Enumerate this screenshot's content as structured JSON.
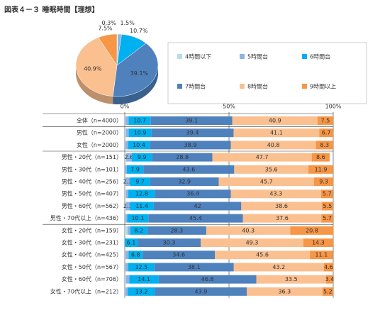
{
  "chart_data": [
    {
      "type": "pie",
      "title": "図表４－３ 睡眠時間【理想】",
      "values": [
        0.3,
        1.5,
        10.7,
        39.1,
        40.9,
        7.5
      ],
      "value_labels": [
        "0.3%",
        "1.5%",
        "10.7%",
        "39.1%",
        "40.9%",
        "7.5%"
      ]
    },
    {
      "type": "stacked-bar",
      "categories": [
        "全体（n=4000）",
        "男性（n=2000）",
        "女性（n=2000）",
        "男性・20代（n=151）",
        "男性・30代（n=101）",
        "男性・40代（n=256）",
        "男性・50代（n=407）",
        "男性・60代（n=562）",
        "男性・70代以上（n=436）",
        "女性・20代（n=159）",
        "女性・30代（n=231）",
        "女性・40代（n=425）",
        "女性・50代（n=567）",
        "女性・60代（n=706）",
        "女性・70代以上（n=212）"
      ],
      "series": [
        {
          "name": "4時間以下",
          "color": "#b7dde8",
          "values": [
            0.3,
            0.5,
            0.2,
            0.7,
            0.0,
            0.2,
            0.5,
            0.4,
            0.2,
            1.3,
            0.0,
            0.2,
            0.2,
            0.5,
            0.2
          ]
        },
        {
          "name": "5時間台",
          "color": "#8db3e2",
          "values": [
            1.5,
            1.4,
            1.4,
            2.6,
            1.0,
            2.3,
            1.2,
            2.1,
            1.0,
            1.3,
            0.0,
            1.6,
            1.5,
            1.7,
            1.2
          ]
        },
        {
          "name": "6時間台",
          "color": "#00b0f0",
          "values": [
            10.7,
            10.9,
            10.4,
            9.9,
            7.9,
            9.7,
            12.8,
            11.4,
            10.1,
            8.2,
            6.1,
            6.8,
            12.5,
            14.1,
            13.2
          ]
        },
        {
          "name": "7時間台",
          "color": "#4f81bd",
          "values": [
            39.1,
            39.4,
            38.9,
            28.8,
            43.6,
            32.9,
            36.4,
            42.0,
            45.4,
            28.3,
            30.3,
            34.6,
            38.1,
            46.8,
            43.9
          ]
        },
        {
          "name": "8時間台",
          "color": "#fac090",
          "values": [
            40.9,
            41.1,
            40.8,
            47.7,
            35.6,
            45.7,
            43.3,
            38.6,
            37.6,
            40.3,
            49.3,
            45.6,
            43.2,
            33.5,
            36.3
          ]
        },
        {
          "name": "9時間以上",
          "color": "#f79646",
          "values": [
            7.5,
            6.7,
            8.3,
            8.6,
            11.9,
            9.3,
            5.7,
            5.5,
            5.7,
            20.8,
            14.3,
            11.1,
            4.6,
            3.4,
            5.2
          ]
        }
      ],
      "xlim": [
        0,
        100
      ],
      "xticks": [
        {
          "value": 0,
          "label": "0%"
        },
        {
          "value": 50,
          "label": "50%"
        },
        {
          "value": 100,
          "label": "100%"
        }
      ],
      "grid": true
    }
  ]
}
